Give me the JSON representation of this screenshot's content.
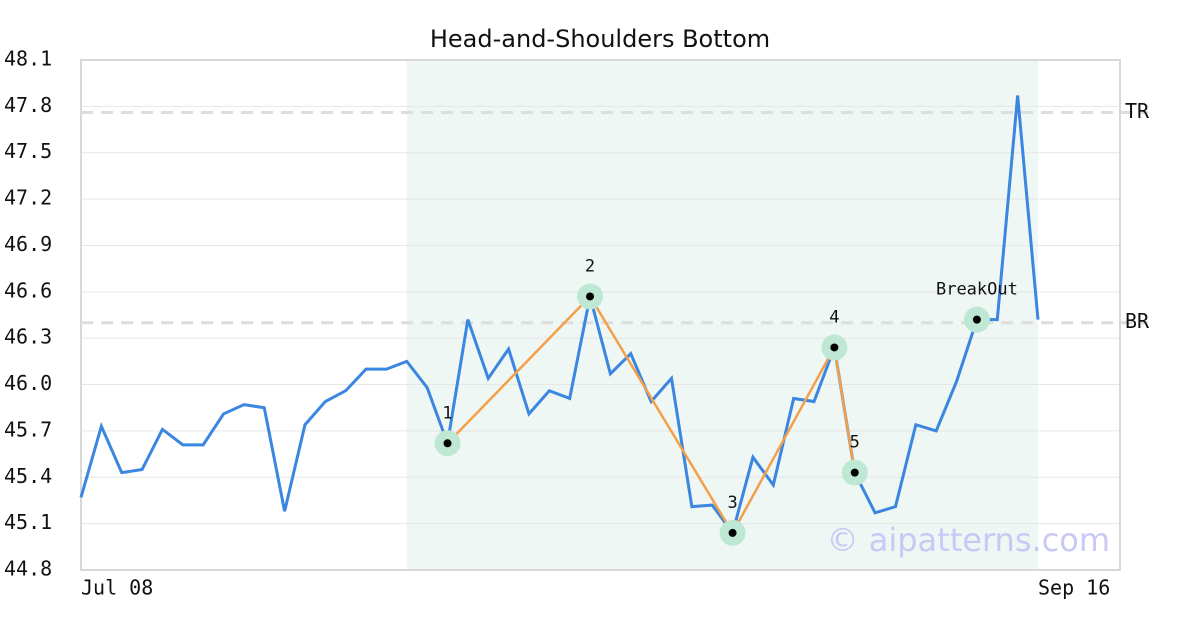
{
  "chart_data": {
    "type": "line",
    "title": "Head-and-Shoulders Bottom",
    "categories": [
      "Jul 08",
      null,
      null,
      null,
      null,
      null,
      null,
      null,
      null,
      null,
      null,
      null,
      null,
      null,
      null,
      null,
      null,
      null,
      null,
      null,
      null,
      null,
      null,
      null,
      null,
      null,
      null,
      null,
      null,
      null,
      null,
      null,
      null,
      null,
      null,
      null,
      null,
      null,
      null,
      null,
      null,
      null,
      null,
      null,
      null,
      null,
      null,
      "Sep 16"
    ],
    "series": [
      {
        "color": "#3a86e0",
        "values": [
          45.27,
          45.73,
          45.43,
          45.45,
          45.71,
          45.61,
          45.61,
          45.81,
          45.87,
          45.85,
          45.18,
          45.74,
          45.89,
          45.96,
          46.1,
          46.1,
          46.15,
          45.98,
          45.62,
          46.42,
          46.04,
          46.23,
          45.81,
          45.96,
          45.91,
          46.57,
          46.07,
          46.2,
          45.89,
          46.04,
          45.21,
          45.22,
          45.04,
          45.53,
          45.35,
          45.91,
          45.89,
          46.24,
          45.43,
          45.17,
          45.21,
          45.74,
          45.7,
          46.02,
          46.42,
          46.42,
          47.87,
          46.42
        ]
      }
    ],
    "pattern": {
      "color": "#f4a04a",
      "points": [
        {
          "label": "1",
          "index": 18,
          "value": 45.62
        },
        {
          "label": "2",
          "index": 25,
          "value": 46.57
        },
        {
          "label": "3",
          "index": 32,
          "value": 45.04
        },
        {
          "label": "4",
          "index": 37,
          "value": 46.24
        },
        {
          "label": "5",
          "index": 38,
          "value": 45.43
        }
      ],
      "breakout": {
        "label": "BreakOut",
        "index": 44,
        "value": 46.42
      },
      "highlight": [
        16,
        47
      ]
    },
    "levels": [
      {
        "label": "TR",
        "value": 47.76
      },
      {
        "label": "BR",
        "value": 46.4
      }
    ],
    "ylim": [
      44.8,
      48.1
    ],
    "yticks": [
      {
        "value": 44.8,
        "label": "44.8"
      },
      45.1,
      45.4,
      45.7,
      {
        "value": 46,
        "label": "46.0"
      },
      46.3,
      46.6,
      46.9,
      47.2,
      47.5,
      47.8,
      48.1
    ],
    "grid": true,
    "watermark": "© aipatterns.com"
  }
}
